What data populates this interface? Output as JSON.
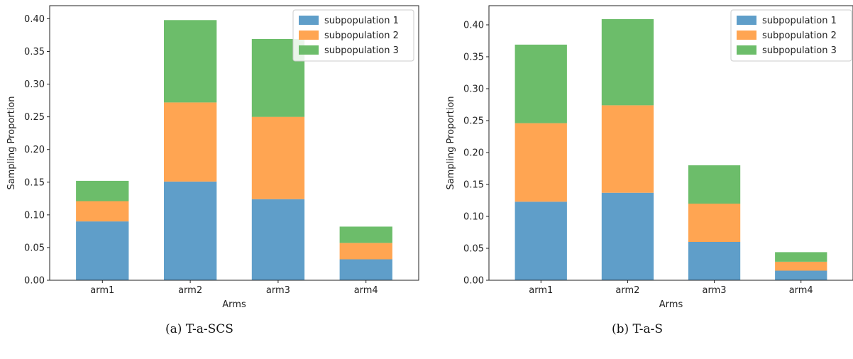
{
  "colors": {
    "sub1": "#5f9ec9",
    "sub2": "#ffa552",
    "sub3": "#6cbd6a",
    "axis": "#222222"
  },
  "charts": [
    {
      "caption": "(a)  T-a-SCS",
      "chart_data": {
        "type": "bar",
        "stacked": true,
        "categories": [
          "arm1",
          "arm2",
          "arm3",
          "arm4"
        ],
        "series": [
          {
            "name": "subpopulation 1",
            "values": [
              0.09,
              0.151,
              0.124,
              0.032
            ]
          },
          {
            "name": "subpopulation 2",
            "values": [
              0.031,
              0.121,
              0.126,
              0.025
            ]
          },
          {
            "name": "subpopulation 3",
            "values": [
              0.031,
              0.126,
              0.119,
              0.025
            ]
          }
        ],
        "xlabel": "Arms",
        "ylabel": "Sampling Proportion",
        "ylim": [
          0,
          0.42
        ],
        "yticks": [
          "0.00",
          "0.05",
          "0.10",
          "0.15",
          "0.20",
          "0.25",
          "0.30",
          "0.35",
          "0.40"
        ],
        "legend": "top-right",
        "grid": false
      }
    },
    {
      "caption": "(b)  T-a-S",
      "chart_data": {
        "type": "bar",
        "stacked": true,
        "categories": [
          "arm1",
          "arm2",
          "arm3",
          "arm4"
        ],
        "series": [
          {
            "name": "subpopulation 1",
            "values": [
              0.123,
              0.137,
              0.06,
              0.015
            ]
          },
          {
            "name": "subpopulation 2",
            "values": [
              0.123,
              0.137,
              0.06,
              0.014
            ]
          },
          {
            "name": "subpopulation 3",
            "values": [
              0.123,
              0.135,
              0.06,
              0.015
            ]
          }
        ],
        "xlabel": "Arms",
        "ylabel": "Sampling Proportion",
        "ylim": [
          0,
          0.43
        ],
        "yticks": [
          "0.00",
          "0.05",
          "0.10",
          "0.15",
          "0.20",
          "0.25",
          "0.30",
          "0.35",
          "0.40"
        ],
        "legend": "top-right",
        "grid": false
      }
    }
  ]
}
